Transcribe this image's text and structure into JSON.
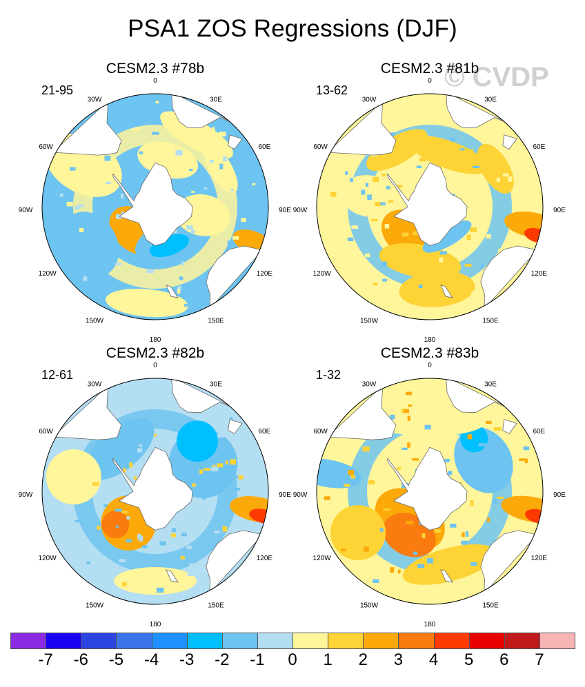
{
  "title": "PSA1 ZOS Regressions (DJF)",
  "watermark": "© CVDP",
  "lon_labels": [
    "0",
    "30E",
    "60E",
    "90E",
    "120E",
    "150E",
    "180",
    "150W",
    "120W",
    "90W",
    "60W",
    "30W"
  ],
  "panels": [
    {
      "title": "CESM2.3 #78b",
      "range": "21-95"
    },
    {
      "title": "CESM2.3 #81b",
      "range": "13-62"
    },
    {
      "title": "CESM2.3 #82b",
      "range": "12-61"
    },
    {
      "title": "CESM2.3 #83b",
      "range": "1-32"
    }
  ],
  "colorbar": {
    "colors": [
      "#8a2be2",
      "#1a00f0",
      "#2d45e0",
      "#3a73ea",
      "#1e90ff",
      "#00bfff",
      "#6ec4f0",
      "#b4def2",
      "#fff59a",
      "#fdd335",
      "#fca90a",
      "#fa7b10",
      "#ff3a00",
      "#e60000",
      "#c21a1a",
      "#f8b4b4"
    ],
    "labels": [
      "-7",
      "-6",
      "-5",
      "-4",
      "-3",
      "-2",
      "-1",
      "0",
      "1",
      "2",
      "3",
      "4",
      "5",
      "6",
      "7"
    ]
  }
}
